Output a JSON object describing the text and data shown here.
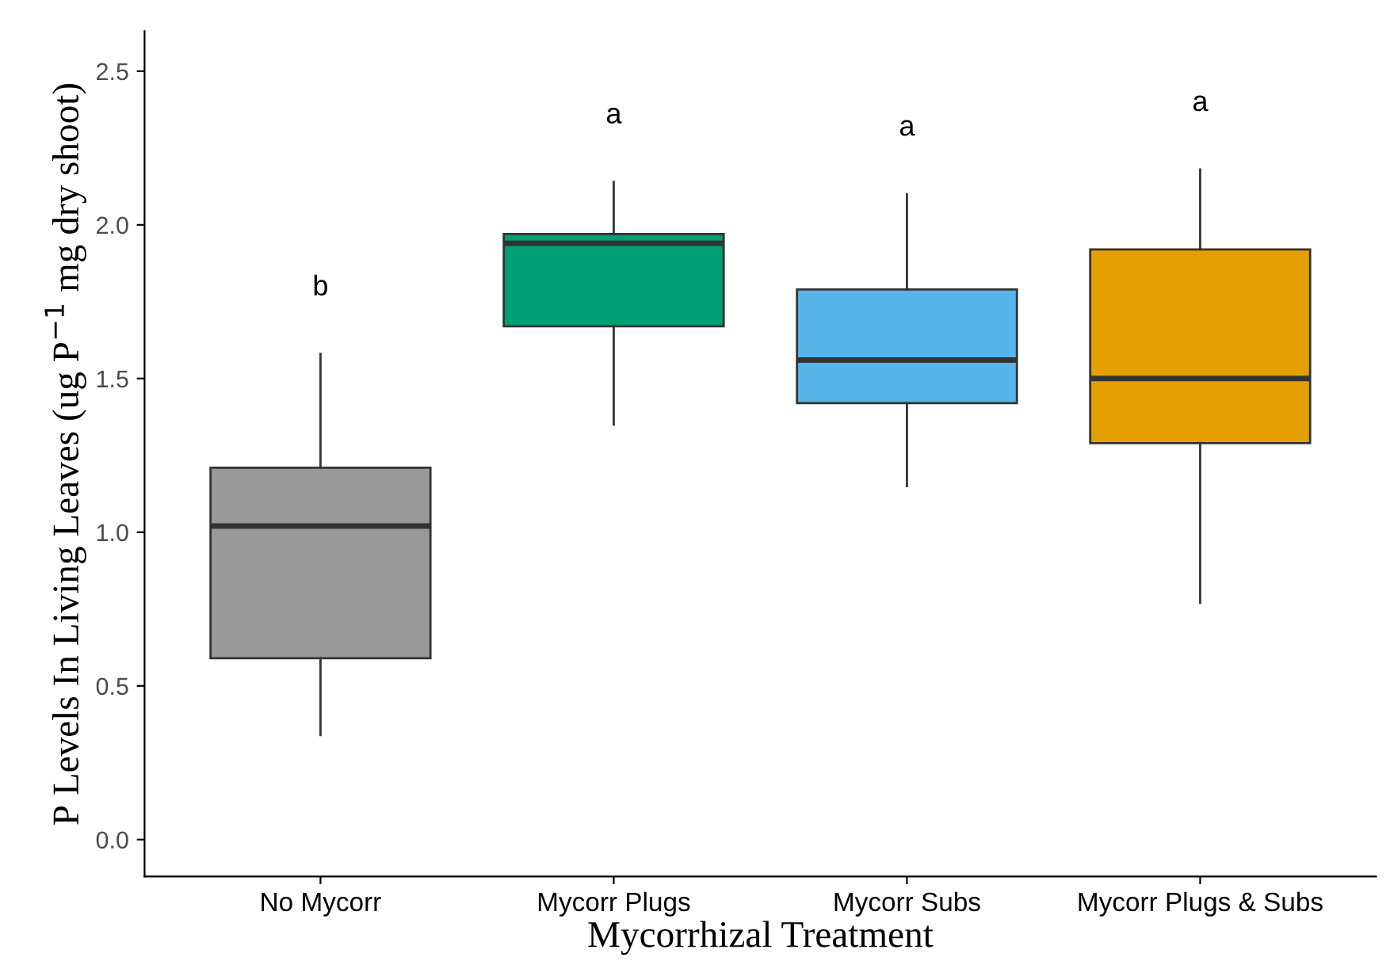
{
  "chart_data": {
    "type": "box",
    "xlabel": "Mycorrhizal Treatment",
    "ylabel": "P Levels In Living Leaves (ug P$^{−1}$ mg dry shoot)",
    "categories": [
      "No Mycorr",
      "Mycorr Plugs",
      "Mycorr Subs",
      "Mycorr Plugs & Subs"
    ],
    "colors": [
      "#999999",
      "#009e73",
      "#56b4e9",
      "#e69f00"
    ],
    "boxes": [
      {
        "low": 0.34,
        "q1": 0.59,
        "median": 1.02,
        "q3": 1.21,
        "high": 1.58
      },
      {
        "low": 1.35,
        "q1": 1.67,
        "median": 1.94,
        "q3": 1.97,
        "high": 2.14
      },
      {
        "low": 1.15,
        "q1": 1.42,
        "median": 1.56,
        "q3": 1.79,
        "high": 2.1
      },
      {
        "low": 0.77,
        "q1": 1.29,
        "median": 1.5,
        "q3": 1.92,
        "high": 2.18
      }
    ],
    "annotations": [
      "b",
      "a",
      "a",
      "a"
    ],
    "ylim": [
      -0.12,
      2.63
    ],
    "yticks": [
      {
        "value": 0,
        "label": "0.0"
      },
      {
        "value": 0.5,
        "label": "0.5"
      },
      {
        "value": 1,
        "label": "1.0"
      },
      {
        "value": 1.5,
        "label": "1.5"
      },
      {
        "value": 2,
        "label": "2.0"
      },
      {
        "value": 2.5,
        "label": "2.5"
      }
    ],
    "grid": false,
    "legend": false
  }
}
